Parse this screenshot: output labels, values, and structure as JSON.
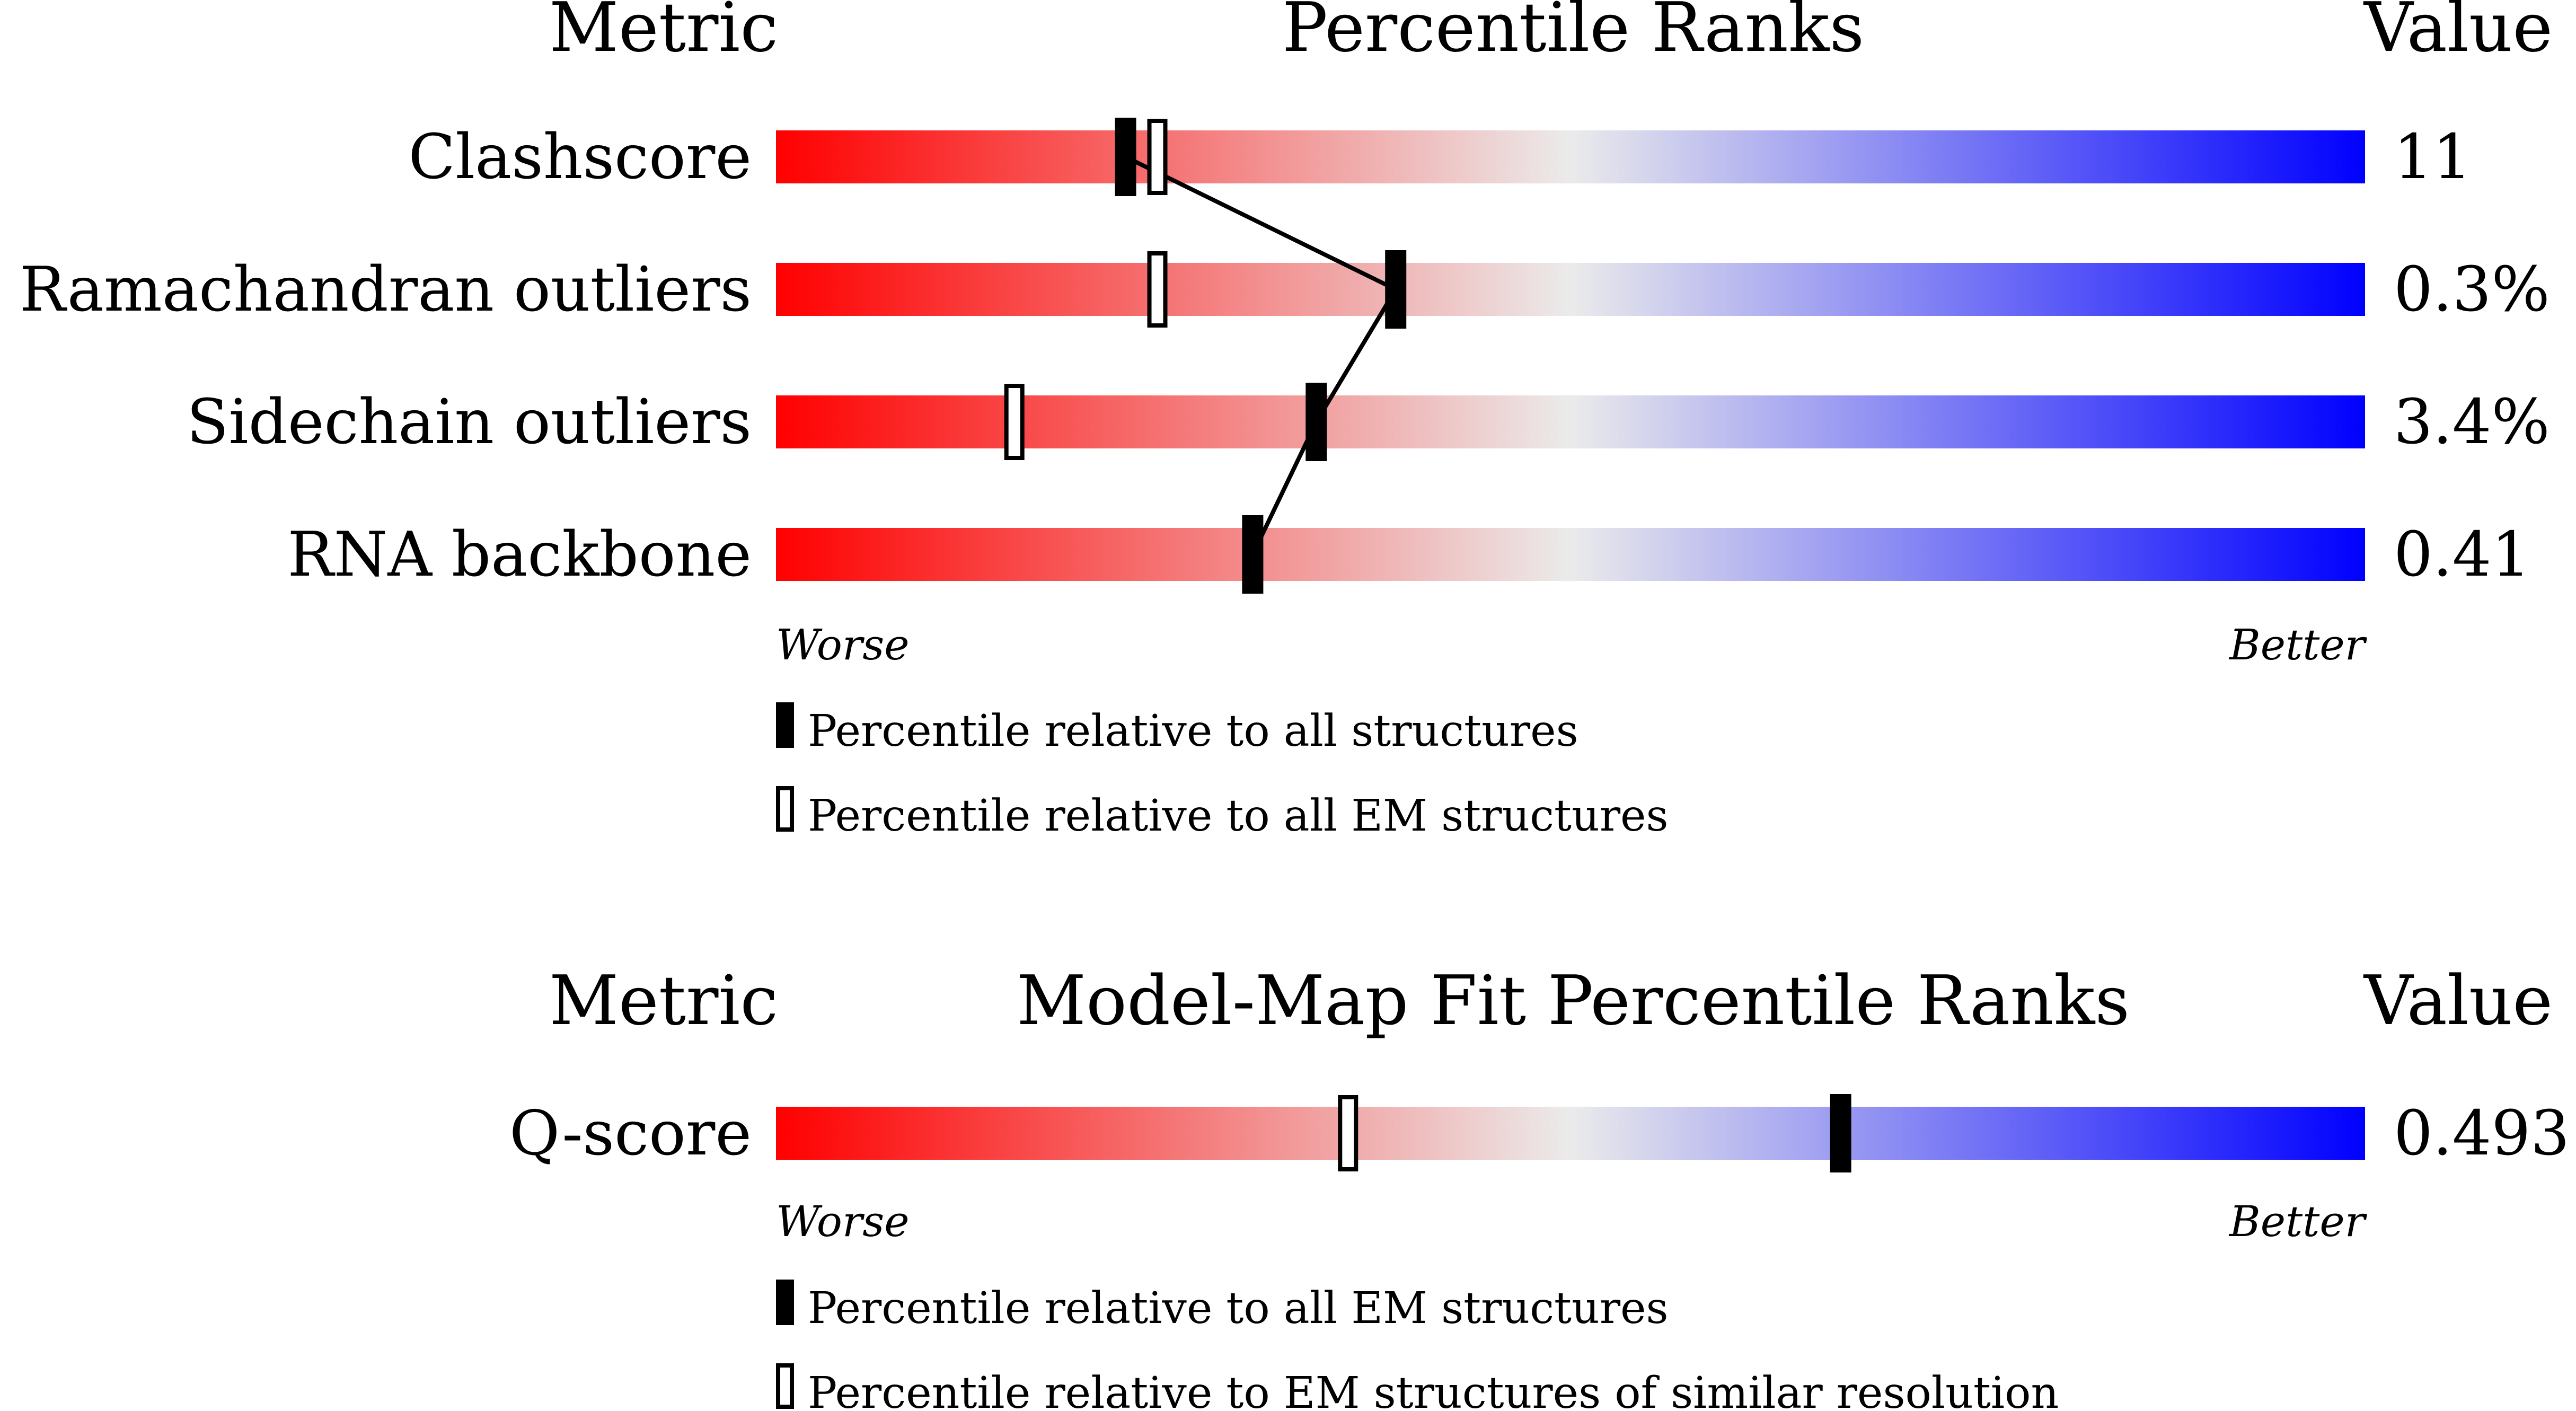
{
  "colors": {
    "worse": "#ff0000",
    "middle": "#ebebeb",
    "better": "#0000ff",
    "marker": "#000000",
    "background": "#ffffff"
  },
  "panels": [
    {
      "headers": {
        "metric": "Metric",
        "title": "Percentile Ranks",
        "value": "Value"
      },
      "axis": {
        "worse": "Worse",
        "better": "Better"
      },
      "legend": [
        {
          "marker": "filled",
          "text": "Percentile relative to all structures"
        },
        {
          "marker": "open",
          "text": "Percentile relative to all EM structures"
        }
      ]
    },
    {
      "headers": {
        "metric": "Metric",
        "title": "Model-Map Fit Percentile Ranks",
        "value": "Value"
      },
      "axis": {
        "worse": "Worse",
        "better": "Better"
      },
      "legend": [
        {
          "marker": "filled",
          "text": "Percentile relative to all EM structures"
        },
        {
          "marker": "open",
          "text": "Percentile relative to EM structures of similar resolution"
        }
      ]
    }
  ],
  "chart_data": [
    {
      "type": "percentile-slider",
      "title": "Percentile Ranks",
      "xlim": [
        0,
        100
      ],
      "connect_filled_markers": true,
      "series": [
        {
          "name": "Percentile relative to all structures",
          "marker": "filled"
        },
        {
          "name": "Percentile relative to all EM structures",
          "marker": "open"
        }
      ],
      "rows": [
        {
          "metric": "Clashscore",
          "value": "11",
          "filled": 22,
          "open": 24
        },
        {
          "metric": "Ramachandran outliers",
          "value": "0.3%",
          "filled": 39,
          "open": 24
        },
        {
          "metric": "Sidechain outliers",
          "value": "3.4%",
          "filled": 34,
          "open": 15
        },
        {
          "metric": "RNA backbone",
          "value": "0.41",
          "filled": 30,
          "open": null
        }
      ]
    },
    {
      "type": "percentile-slider",
      "title": "Model-Map Fit Percentile Ranks",
      "xlim": [
        0,
        100
      ],
      "connect_filled_markers": false,
      "series": [
        {
          "name": "Percentile relative to all EM structures",
          "marker": "filled"
        },
        {
          "name": "Percentile relative to EM structures of similar resolution",
          "marker": "open"
        }
      ],
      "rows": [
        {
          "metric": "Q-score",
          "value": "0.493",
          "filled": 67,
          "open": 36
        }
      ]
    }
  ]
}
